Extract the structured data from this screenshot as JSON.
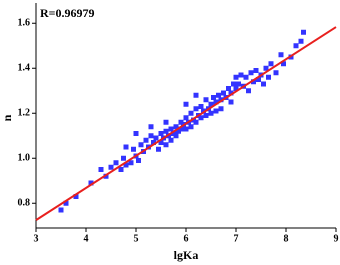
{
  "chart_data": {
    "type": "scatter",
    "annotation": "R=0.96979",
    "x_label": "lgKa",
    "y_label": "n",
    "xlim": [
      3,
      9
    ],
    "xticks": [
      3,
      4,
      5,
      6,
      7,
      8,
      9
    ],
    "ylim": [
      0.69,
      1.69
    ],
    "yticks": [
      0.8,
      {
        "value": 1,
        "label": "1.0"
      },
      1.2,
      1.4,
      1.6
    ],
    "series": [
      {
        "type": "scatter",
        "color": "#3333ff",
        "x": [
          3.5,
          3.6,
          3.8,
          4.1,
          4.3,
          4.4,
          4.5,
          4.6,
          4.7,
          4.75,
          4.8,
          4.9,
          4.95,
          5.0,
          5.05,
          5.1,
          5.15,
          5.2,
          5.25,
          5.3,
          5.35,
          5.4,
          5.45,
          5.5,
          5.5,
          5.55,
          5.6,
          5.6,
          5.65,
          5.7,
          5.7,
          5.75,
          5.8,
          5.8,
          5.85,
          5.9,
          5.9,
          5.95,
          6.0,
          6.0,
          6.05,
          6.1,
          6.1,
          6.15,
          6.2,
          6.2,
          6.25,
          6.3,
          6.3,
          6.35,
          6.4,
          6.4,
          6.45,
          6.5,
          6.5,
          6.55,
          6.6,
          6.6,
          6.65,
          6.7,
          6.7,
          6.75,
          6.8,
          6.85,
          6.9,
          6.9,
          6.95,
          7.0,
          7.0,
          7.05,
          7.1,
          7.15,
          7.2,
          7.25,
          7.3,
          7.35,
          7.4,
          7.45,
          7.5,
          7.55,
          7.6,
          7.65,
          7.7,
          7.8,
          7.9,
          7.95,
          8.1,
          8.2,
          8.3,
          8.35,
          5.3,
          5.6,
          6.0,
          6.2,
          4.8,
          5.0
        ],
        "values": [
          0.77,
          0.8,
          0.83,
          0.89,
          0.95,
          0.92,
          0.96,
          0.98,
          0.95,
          1.0,
          0.97,
          0.98,
          1.04,
          1.01,
          0.99,
          1.06,
          1.03,
          1.08,
          1.05,
          1.1,
          1.07,
          1.09,
          1.04,
          1.11,
          1.07,
          1.09,
          1.12,
          1.06,
          1.1,
          1.13,
          1.08,
          1.11,
          1.14,
          1.1,
          1.12,
          1.16,
          1.13,
          1.15,
          1.18,
          1.13,
          1.16,
          1.2,
          1.14,
          1.17,
          1.22,
          1.16,
          1.19,
          1.23,
          1.18,
          1.21,
          1.26,
          1.19,
          1.22,
          1.24,
          1.2,
          1.27,
          1.25,
          1.21,
          1.28,
          1.26,
          1.22,
          1.29,
          1.27,
          1.31,
          1.29,
          1.25,
          1.33,
          1.31,
          1.36,
          1.33,
          1.37,
          1.32,
          1.36,
          1.3,
          1.38,
          1.34,
          1.39,
          1.35,
          1.37,
          1.33,
          1.4,
          1.36,
          1.42,
          1.38,
          1.46,
          1.42,
          1.45,
          1.5,
          1.52,
          1.56,
          1.14,
          1.16,
          1.24,
          1.28,
          1.05,
          1.11
        ]
      },
      {
        "type": "line",
        "color": "#e8201e",
        "x": [
          3,
          9
        ],
        "values": [
          0.725,
          1.583
        ]
      }
    ]
  }
}
